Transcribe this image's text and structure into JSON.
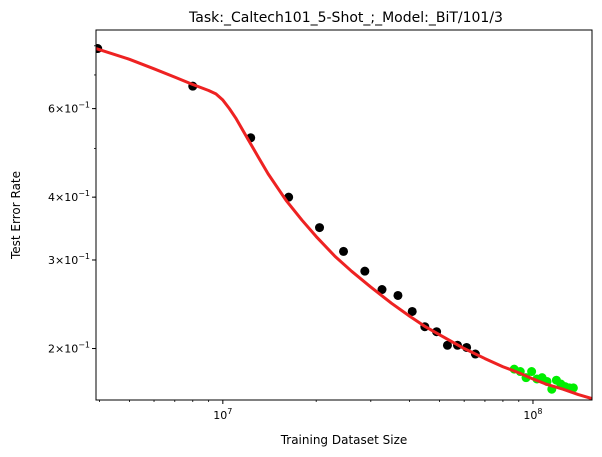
{
  "chart_data": {
    "type": "scatter",
    "title": "Task:_Caltech101_5-Shot_;_Model:_BiT/101/3",
    "xlabel": "Training Dataset Size",
    "ylabel": "Test Error Rate",
    "xscale": "log",
    "yscale": "log",
    "xlim": [
      3900000,
      155000000
    ],
    "ylim": [
      0.158,
      0.86
    ],
    "grid": false,
    "x_ticks": [
      {
        "value": 10000000,
        "base": "10",
        "exp": "7"
      },
      {
        "value": 100000000,
        "base": "10",
        "exp": "8"
      }
    ],
    "y_ticks": [
      {
        "value": 0.2,
        "mantissa": "2",
        "base": "10",
        "exp": "−1"
      },
      {
        "value": 0.3,
        "mantissa": "3",
        "base": "10",
        "exp": "−1"
      },
      {
        "value": 0.4,
        "mantissa": "4",
        "base": "10",
        "exp": "−1"
      },
      {
        "value": 0.6,
        "mantissa": "6",
        "base": "10",
        "exp": "−1"
      }
    ],
    "series": [
      {
        "color": "#000000",
        "marker": "circle",
        "x": [
          3950000,
          8000000,
          12300000,
          16300000,
          20500000,
          24500000,
          28700000,
          32600000,
          36700000,
          40800000,
          44800000,
          48900000,
          53000000,
          57100000,
          61100000,
          65200000
        ],
        "y": [
          0.79,
          0.665,
          0.525,
          0.4,
          0.348,
          0.312,
          0.285,
          0.262,
          0.255,
          0.237,
          0.221,
          0.216,
          0.203,
          0.203,
          0.201,
          0.195
        ]
      },
      {
        "color": "#00ee00",
        "marker": "circle",
        "x": [
          87000000,
          91000000,
          95000000,
          99000000,
          103000000,
          107000000,
          111000000,
          115000000,
          119000000,
          123000000,
          127000000,
          131000000,
          135000000
        ],
        "y": [
          0.182,
          0.18,
          0.175,
          0.18,
          0.174,
          0.175,
          0.172,
          0.166,
          0.173,
          0.17,
          0.168,
          0.167,
          0.167
        ]
      },
      {
        "color": "#ee2222",
        "type": "line",
        "x": [
          3900000,
          5000000,
          6000000,
          7000000,
          8000000,
          9000000,
          9500000,
          10000000,
          10500000,
          11000000,
          12000000,
          13000000,
          14000000,
          16000000,
          18000000,
          20000000,
          23000000,
          26000000,
          30000000,
          35000000,
          40000000,
          45000000,
          50000000,
          60000000,
          70000000,
          80000000,
          90000000,
          100000000,
          110000000,
          125000000,
          140000000,
          155000000
        ],
        "y": [
          0.79,
          0.752,
          0.72,
          0.693,
          0.67,
          0.652,
          0.642,
          0.624,
          0.6,
          0.575,
          0.524,
          0.481,
          0.445,
          0.394,
          0.36,
          0.334,
          0.305,
          0.285,
          0.265,
          0.246,
          0.232,
          0.221,
          0.213,
          0.2,
          0.191,
          0.184,
          0.179,
          0.174,
          0.17,
          0.166,
          0.162,
          0.159
        ]
      }
    ]
  }
}
